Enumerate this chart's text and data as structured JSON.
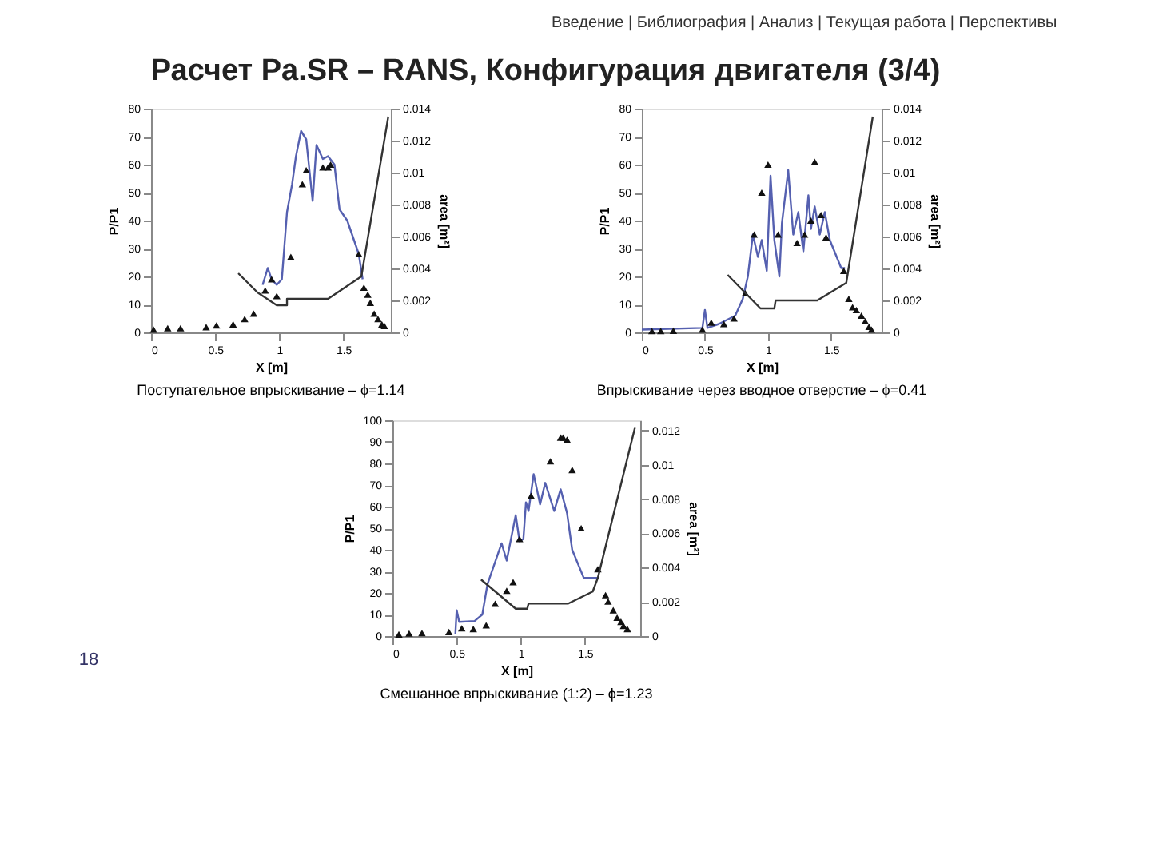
{
  "chart_data": [
    {
      "type": "line",
      "title": "Поступательное впрыскивание – ϕ=1.14",
      "xlabel": "X [m]",
      "ylabel": "P/P1",
      "y2label": "area [m²]",
      "annotations": [
        "Введение | Библиография | Анализ | Текущая работа | Перспективы",
        "Расчет Pa.SR – RANS, Конфигурация двигателя (3/4)"
      ],
      "xlim": [
        0,
        1.87
      ],
      "xticks": [
        0,
        0.5,
        1,
        1.5
      ],
      "ylim": [
        0,
        80
      ],
      "yticks": [
        0,
        10,
        20,
        30,
        40,
        50,
        60,
        70,
        80
      ],
      "y2lim": [
        0,
        0.014
      ],
      "y2ticks": [
        0,
        0.002,
        0.004,
        0.006,
        0.008,
        0.01,
        0.012,
        0.014
      ],
      "grid": false,
      "series": [
        {
          "color": "#5560b0",
          "x": [
            0.87,
            0.91,
            0.94,
            0.98,
            1.02,
            1.06,
            1.1,
            1.13,
            1.17,
            1.21,
            1.26,
            1.29,
            1.34,
            1.38,
            1.43,
            1.47,
            1.53,
            1.62,
            1.65
          ],
          "values": [
            17,
            23,
            19,
            17,
            19,
            43,
            53,
            63,
            72,
            69,
            47,
            67,
            62,
            63,
            60,
            44,
            40,
            28,
            19
          ]
        },
        {
          "type": "scatter",
          "marker": "triangle",
          "color": "#111111",
          "x": [
            0.02,
            0.13,
            0.23,
            0.43,
            0.51,
            0.64,
            0.73,
            0.8,
            0.89,
            0.94,
            0.98,
            1.09,
            1.18,
            1.21,
            1.34,
            1.38,
            1.4,
            1.62,
            1.66,
            1.69,
            1.71,
            1.74,
            1.77,
            1.8,
            1.82
          ],
          "values": [
            1,
            1.5,
            1.5,
            1.9,
            2.5,
            2.9,
            4.8,
            6.7,
            15,
            19,
            13,
            27,
            53,
            58,
            59,
            59,
            60,
            28,
            16,
            13.5,
            10.6,
            6.7,
            4.8,
            2.9,
            2.3
          ]
        },
        {
          "axis": "y2",
          "color": "#333333",
          "x": [
            0.68,
            0.83,
            0.98,
            1.06,
            1.06,
            1.38,
            1.64,
            1.85
          ],
          "values": [
            0.0037,
            0.0025,
            0.0017,
            0.0017,
            0.0021,
            0.0021,
            0.0035,
            0.0135
          ]
        }
      ]
    },
    {
      "type": "line",
      "title": "Впрыскивание через вводное отверстие – ϕ=0.41",
      "xlabel": "X [m]",
      "ylabel": "P/P1",
      "y2label": "area [m²]",
      "xlim": [
        0,
        1.9
      ],
      "xticks": [
        0,
        0.5,
        1,
        1.5
      ],
      "ylim": [
        0,
        80
      ],
      "yticks": [
        0,
        10,
        20,
        30,
        40,
        50,
        60,
        70,
        80
      ],
      "y2lim": [
        0,
        0.014
      ],
      "y2ticks": [
        0,
        0.002,
        0.004,
        0.006,
        0.008,
        0.01,
        0.012,
        0.014
      ],
      "grid": false,
      "series": [
        {
          "color": "#5560b0",
          "x": [
            0,
            0.48,
            0.5,
            0.52,
            0.61,
            0.74,
            0.8,
            0.84,
            0.88,
            0.92,
            0.95,
            0.99,
            1.02,
            1.05,
            1.09,
            1.11,
            1.16,
            1.2,
            1.24,
            1.28,
            1.32,
            1.34,
            1.37,
            1.41,
            1.45,
            1.49,
            1.58,
            1.61
          ],
          "values": [
            1,
            1.6,
            8,
            1.6,
            3,
            6,
            12,
            20,
            35,
            27,
            33,
            22,
            56,
            33,
            20,
            39,
            58,
            35,
            43,
            29,
            49,
            37,
            45,
            35,
            43,
            33,
            23,
            23
          ]
        },
        {
          "type": "scatter",
          "marker": "triangle",
          "color": "#111111",
          "x": [
            0.08,
            0.15,
            0.25,
            0.48,
            0.55,
            0.65,
            0.73,
            0.82,
            0.89,
            0.95,
            1,
            1.08,
            1.23,
            1.29,
            1.34,
            1.37,
            1.42,
            1.46,
            1.6,
            1.64,
            1.67,
            1.7,
            1.74,
            1.77,
            1.8,
            1.82
          ],
          "values": [
            0.5,
            0.5,
            0.6,
            1,
            3.5,
            3,
            5,
            14,
            35,
            50,
            60,
            35,
            32,
            35,
            40,
            61,
            42,
            34,
            22,
            12,
            9,
            8,
            6,
            4,
            2,
            1
          ]
        },
        {
          "axis": "y2",
          "color": "#333333",
          "x": [
            0.68,
            0.94,
            1.05,
            1.06,
            1.39,
            1.62,
            1.83
          ],
          "values": [
            0.0036,
            0.0015,
            0.0015,
            0.002,
            0.002,
            0.0031,
            0.0135
          ]
        }
      ]
    },
    {
      "type": "line",
      "title": "Смешанное впрыскивание (1:2) – ϕ=1.23",
      "xlabel": "X [m]",
      "ylabel": "P/P1",
      "y2label": "area [m²]",
      "annotations": [
        "18"
      ],
      "xlim": [
        0,
        1.93
      ],
      "xticks": [
        0,
        0.5,
        1,
        1.5
      ],
      "ylim": [
        0,
        100
      ],
      "yticks": [
        0,
        10,
        20,
        30,
        40,
        50,
        60,
        70,
        80,
        90,
        100
      ],
      "y2lim": [
        0,
        0.0126
      ],
      "y2ticks": [
        0,
        0.002,
        0.004,
        0.006,
        0.008,
        0.01,
        0.012
      ],
      "grid": false,
      "series": [
        {
          "color": "#5560b0",
          "x": [
            0.49,
            0.5,
            0.52,
            0.64,
            0.7,
            0.74,
            0.85,
            0.89,
            0.96,
            0.99,
            1.02,
            1.04,
            1.06,
            1.1,
            1.15,
            1.19,
            1.26,
            1.31,
            1.36,
            1.4,
            1.49,
            1.6
          ],
          "values": [
            0.8,
            12,
            6.6,
            7,
            10,
            24,
            43,
            35,
            56,
            44,
            45,
            62,
            58,
            75,
            61,
            71,
            58,
            68,
            57,
            40,
            27,
            27
          ]
        },
        {
          "type": "scatter",
          "marker": "triangle",
          "color": "#111111",
          "x": [
            0.05,
            0.13,
            0.23,
            0.44,
            0.54,
            0.63,
            0.73,
            0.8,
            0.89,
            0.94,
            0.99,
            1.08,
            1.23,
            1.31,
            1.33,
            1.36,
            1.4,
            1.47,
            1.6,
            1.66,
            1.68,
            1.72,
            1.75,
            1.78,
            1.8,
            1.83
          ],
          "values": [
            0.8,
            1.2,
            1.4,
            1.9,
            3.6,
            3.3,
            5,
            15,
            21,
            25,
            45,
            65,
            81,
            92,
            92,
            91,
            77,
            50,
            31,
            19,
            16,
            12,
            8.5,
            6.6,
            4.7,
            3.3
          ]
        },
        {
          "axis": "y2",
          "color": "#333333",
          "x": [
            0.69,
            0.96,
            1.05,
            1.06,
            1.37,
            1.56,
            1.6,
            1.89
          ],
          "values": [
            0.0033,
            0.0016,
            0.0016,
            0.0019,
            0.0019,
            0.0026,
            0.0034,
            0.0122
          ]
        }
      ]
    }
  ]
}
